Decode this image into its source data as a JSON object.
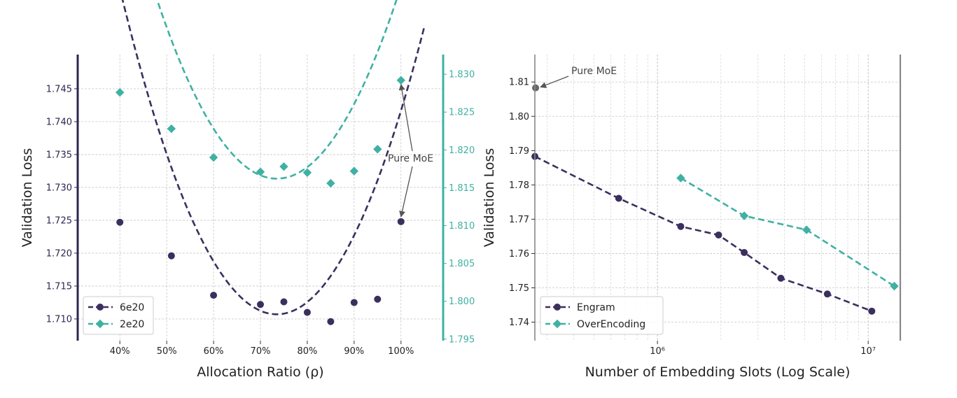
{
  "chart_data": [
    {
      "type": "scatter",
      "title": "",
      "xlabel": "Allocation Ratio (ρ)",
      "ylabel": "Validation Loss",
      "xlim": [
        31,
        109
      ],
      "ylim": [
        1.7067,
        1.7502
      ],
      "y2lim": [
        1.7948,
        1.8326
      ],
      "x_ticks": [
        40,
        50,
        60,
        70,
        80,
        90,
        100
      ],
      "x_tick_labels": [
        "40%",
        "50%",
        "60%",
        "70%",
        "80%",
        "90%",
        "100%"
      ],
      "y_ticks": [
        1.71,
        1.715,
        1.72,
        1.725,
        1.73,
        1.735,
        1.74,
        1.745
      ],
      "y_tick_labels": [
        "1.710",
        "1.715",
        "1.720",
        "1.725",
        "1.730",
        "1.735",
        "1.740",
        "1.745"
      ],
      "y2_ticks": [
        1.795,
        1.8,
        1.805,
        1.81,
        1.815,
        1.82,
        1.825,
        1.83
      ],
      "y2_tick_labels": [
        "1.795",
        "1.800",
        "1.805",
        "1.810",
        "1.815",
        "1.820",
        "1.825",
        "1.830"
      ],
      "grid": true,
      "legend": "bottom-left",
      "series": [
        {
          "name": "6e20",
          "axis": "left",
          "marker": "circle",
          "color": "#3b2f5e",
          "x": [
            40,
            51,
            60,
            70,
            75,
            80,
            85,
            90,
            95,
            100
          ],
          "y": [
            1.7247,
            1.7196,
            1.7136,
            1.7122,
            1.7126,
            1.711,
            1.7096,
            1.7125,
            1.713,
            1.7248
          ]
        },
        {
          "name": "2e20",
          "axis": "right",
          "marker": "diamond",
          "color": "#3fb1a3",
          "x": [
            40,
            51,
            60,
            70,
            75,
            80,
            85,
            90,
            95,
            100
          ],
          "y": [
            1.8276,
            1.8228,
            1.819,
            1.8171,
            1.8178,
            1.817,
            1.8156,
            1.8172,
            1.8201,
            1.8292
          ]
        }
      ],
      "fits": [
        {
          "name": "6e20 fit",
          "axis": "left",
          "color": "#3b2f5e",
          "x_range": [
            38,
            105
          ],
          "a": 4.41e-05,
          "b": 73.5,
          "c": 1.7107
        },
        {
          "name": "2e20 fit",
          "axis": "right",
          "color": "#3fb1a3",
          "x_range": [
            38,
            105
          ],
          "a": 3.62e-05,
          "b": 73.5,
          "c": 1.8162
        }
      ],
      "annotation": {
        "text": "Pure MoE",
        "targets": [
          [
            100,
            1.7248,
            "left"
          ],
          [
            100,
            1.8292,
            "right"
          ]
        ]
      }
    },
    {
      "type": "scatter",
      "title": "",
      "xlabel": "Number of Embedding Slots (Log Scale)",
      "ylabel": "Validation Loss",
      "xscale": "log",
      "xlim": [
        262000,
        14200000
      ],
      "ylim": [
        1.7346,
        1.818
      ],
      "x_ticks": [
        1000000,
        10000000
      ],
      "x_tick_labels": [
        "10⁶",
        "10⁷"
      ],
      "y_ticks": [
        1.74,
        1.75,
        1.76,
        1.77,
        1.78,
        1.79,
        1.8,
        1.81
      ],
      "y_tick_labels": [
        "1.74",
        "1.75",
        "1.76",
        "1.77",
        "1.78",
        "1.79",
        "1.80",
        "1.81"
      ],
      "grid": true,
      "legend": "bottom-left",
      "series": [
        {
          "name": "Engram",
          "marker": "circle",
          "color": "#3b2f5e",
          "line": "dashed",
          "x": [
            262144,
            655000,
            1290000,
            1950000,
            2580000,
            3850000,
            6400000,
            10400000
          ],
          "y": [
            1.7883,
            1.7761,
            1.7679,
            1.7654,
            1.7603,
            1.7528,
            1.7482,
            1.7432
          ]
        },
        {
          "name": "OverEncoding",
          "marker": "diamond",
          "color": "#3fb1a3",
          "line": "dashed",
          "x": [
            1290000,
            2580000,
            5100000,
            13300000
          ],
          "y": [
            1.782,
            1.771,
            1.7669,
            1.7505
          ]
        }
      ],
      "annotation": {
        "text": "Pure MoE",
        "target": [
          262144,
          1.8083
        ]
      }
    }
  ]
}
